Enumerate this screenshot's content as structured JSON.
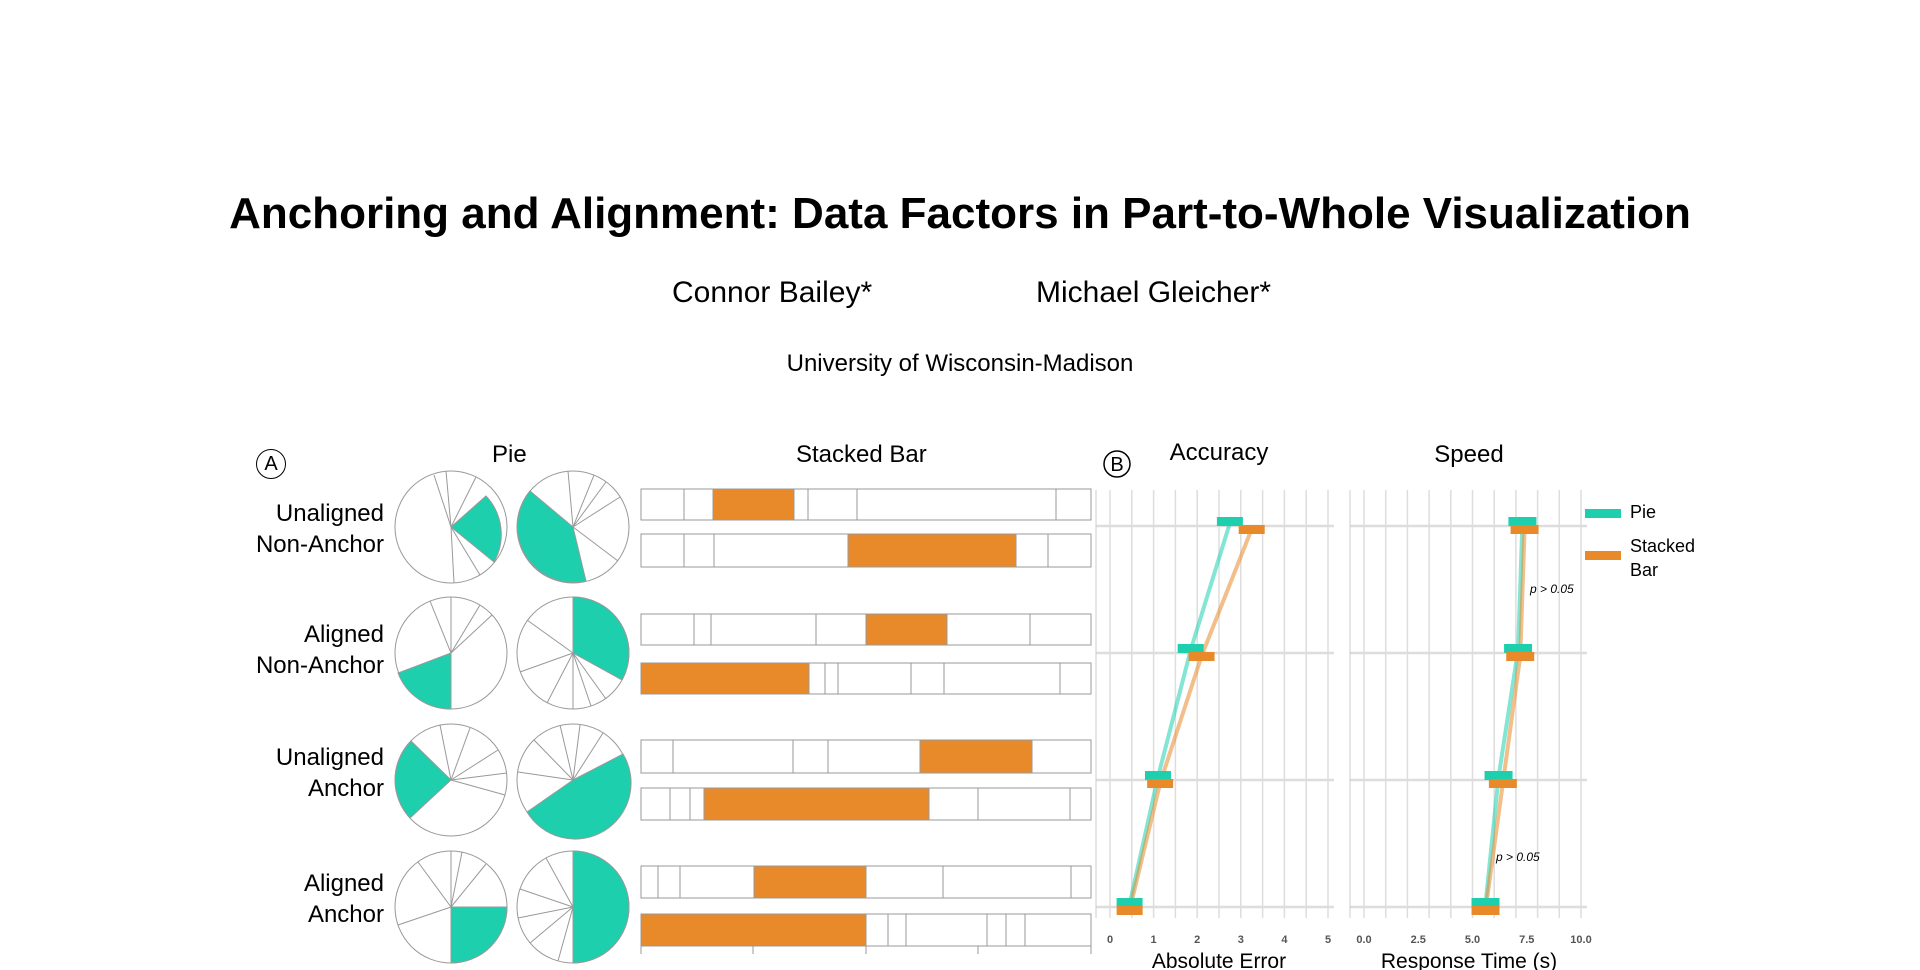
{
  "paper": {
    "title": "Anchoring and Alignment: Data Factors in Part-to-Whole Visualization",
    "authors": [
      "Connor Bailey*",
      "Michael Gleicher*"
    ],
    "affiliation": "University of Wisconsin-Madison"
  },
  "panel_a": {
    "marker": "A",
    "col_pie": "Pie",
    "col_bar": "Stacked Bar",
    "rows": [
      {
        "line1": "Unaligned",
        "line2": "Non-Anchor"
      },
      {
        "line1": "Aligned",
        "line2": "Non-Anchor"
      },
      {
        "line1": "Unaligned",
        "line2": "Anchor"
      },
      {
        "line1": "Aligned",
        "line2": "Anchor"
      }
    ]
  },
  "panel_b": {
    "marker": "B",
    "accuracy_title": "Accuracy",
    "speed_title": "Speed",
    "accuracy_xlabel": "Absolute Error",
    "speed_xlabel": "Response Time (s)",
    "accuracy_ticks": [
      "0",
      "1",
      "2",
      "3",
      "4",
      "5"
    ],
    "speed_ticks": [
      "0.0",
      "2.5",
      "5.0",
      "7.5",
      "10.0"
    ],
    "annotations": [
      "p > 0.05",
      "p > 0.05"
    ],
    "legend": [
      {
        "label": "Pie",
        "color": "#1ecfae"
      },
      {
        "label_line1": "Stacked",
        "label_line2": "Bar",
        "color": "#e8892a"
      }
    ]
  },
  "colors": {
    "teal": "#1ecfae",
    "orange": "#e8892a",
    "grid": "#dddddd"
  },
  "chart_data": [
    {
      "type": "line",
      "title": "Accuracy",
      "xlabel": "Absolute Error",
      "xlim": [
        0,
        5
      ],
      "categories": [
        "Unaligned Non-Anchor",
        "Aligned Non-Anchor",
        "Unaligned Anchor",
        "Aligned Anchor"
      ],
      "series": [
        {
          "name": "Pie",
          "values": [
            2.75,
            1.85,
            1.1,
            0.45
          ]
        },
        {
          "name": "Stacked Bar",
          "values": [
            3.25,
            2.1,
            1.15,
            0.45
          ]
        }
      ]
    },
    {
      "type": "line",
      "title": "Speed",
      "xlabel": "Response Time (s)",
      "xlim": [
        0,
        10
      ],
      "categories": [
        "Unaligned Non-Anchor",
        "Aligned Non-Anchor",
        "Unaligned Anchor",
        "Aligned Anchor"
      ],
      "series": [
        {
          "name": "Pie",
          "values": [
            7.3,
            7.1,
            6.2,
            5.6
          ]
        },
        {
          "name": "Stacked Bar",
          "values": [
            7.4,
            7.2,
            6.4,
            5.6
          ]
        }
      ],
      "annotations": [
        "p > 0.05",
        "p > 0.05"
      ]
    }
  ]
}
